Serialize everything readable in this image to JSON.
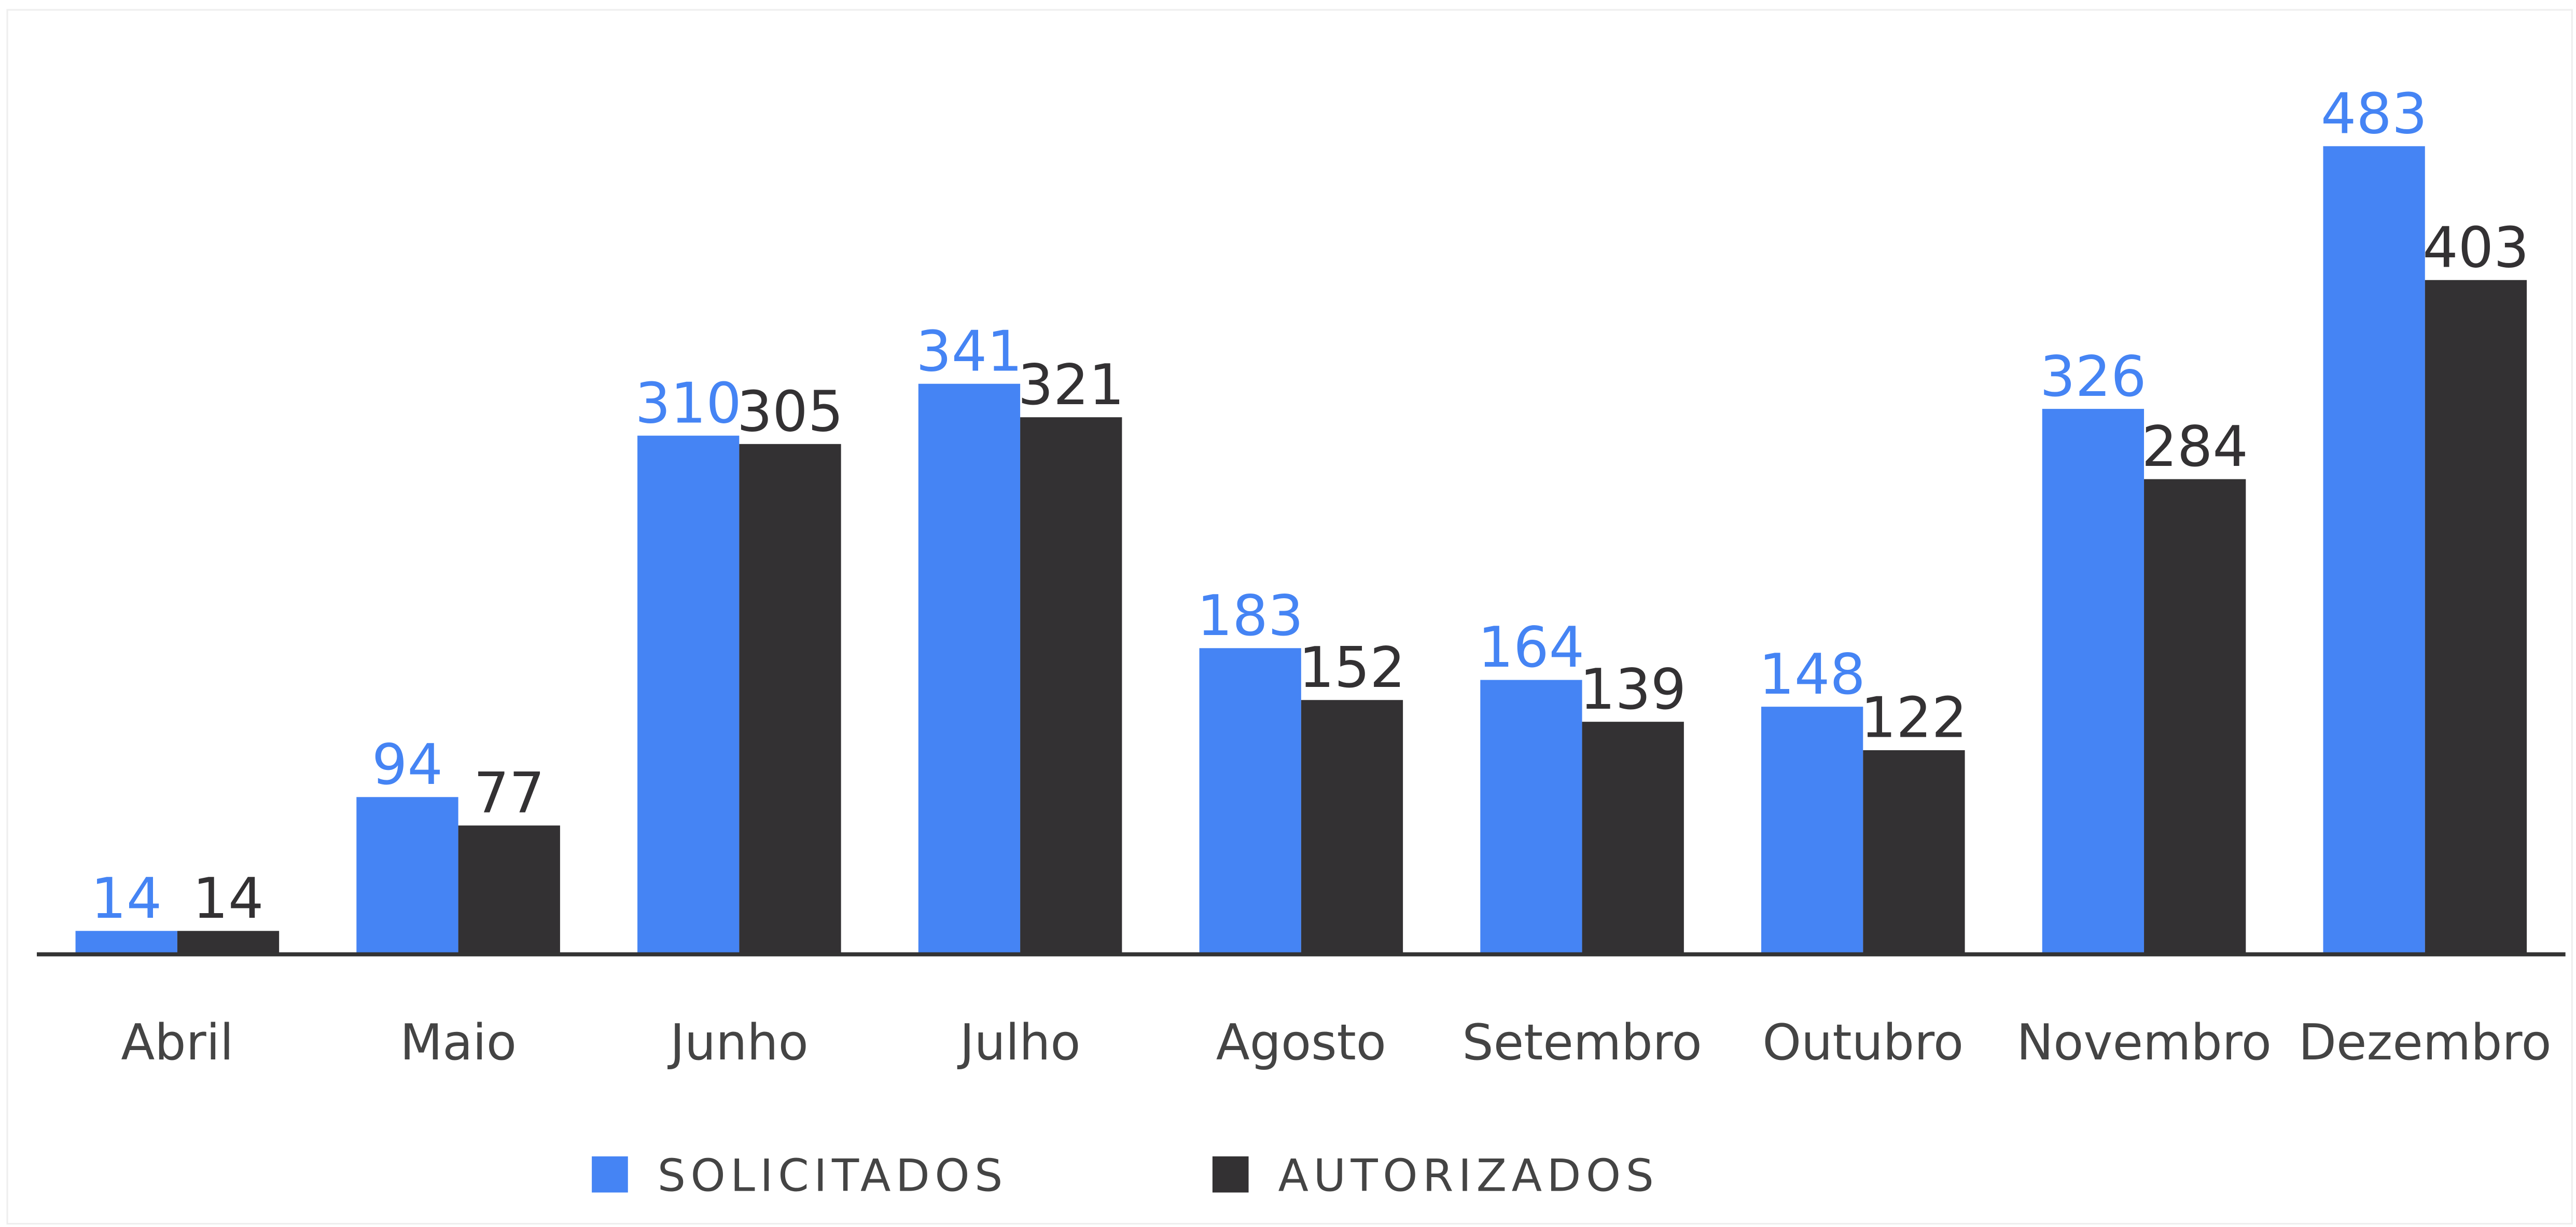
{
  "chart_data": {
    "type": "bar",
    "categories": [
      "Abril",
      "Maio",
      "Junho",
      "Julho",
      "Agosto",
      "Setembro",
      "Outubro",
      "Novembro",
      "Dezembro"
    ],
    "series": [
      {
        "name": "SOLICITADOS",
        "color": "#4584f4",
        "values": [
          14,
          94,
          310,
          341,
          183,
          164,
          148,
          326,
          483
        ]
      },
      {
        "name": "AUTORIZADOS",
        "color": "#333133",
        "values": [
          14,
          77,
          305,
          321,
          152,
          139,
          122,
          284,
          403
        ]
      }
    ],
    "legend": "bottom"
  }
}
